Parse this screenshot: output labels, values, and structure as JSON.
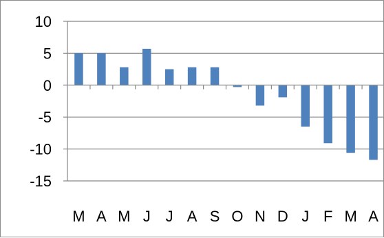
{
  "chart_data": {
    "type": "bar",
    "title": "",
    "xlabel": "",
    "ylabel": "",
    "categories": [
      "M",
      "A",
      "M",
      "J",
      "J",
      "A",
      "S",
      "O",
      "N",
      "D",
      "J",
      "F",
      "M",
      "A"
    ],
    "values": [
      5.0,
      5.0,
      2.8,
      5.7,
      2.5,
      2.8,
      2.8,
      -0.3,
      -3.2,
      -1.9,
      -6.5,
      -9.1,
      -10.6,
      -11.7
    ],
    "ylim": [
      -15,
      10
    ],
    "yticks": [
      10,
      5,
      0,
      -5,
      -10,
      -15
    ],
    "grid": true,
    "legend": "none",
    "bar_color": "#4f81bd",
    "grid_color": "#878787"
  }
}
